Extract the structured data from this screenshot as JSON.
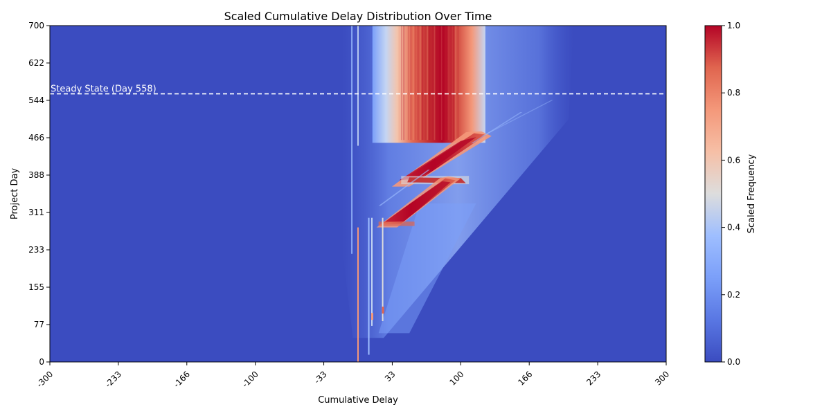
{
  "chart_data": {
    "type": "heatmap",
    "title": "Scaled Cumulative Delay Distribution Over Time",
    "xlabel": "Cumulative Delay",
    "ylabel": "Project Day",
    "xlim": [
      -300,
      300
    ],
    "ylim": [
      0,
      700
    ],
    "x_tick_labels": [
      "-300",
      "-233",
      "-166",
      "-100",
      "-33",
      "33",
      "100",
      "166",
      "233",
      "300"
    ],
    "y_tick_labels": [
      "0",
      "77",
      "155",
      "233",
      "311",
      "388",
      "466",
      "544",
      "622",
      "700"
    ],
    "colormap": "coolwarm",
    "colorbar": {
      "label": "Scaled Frequency",
      "range": [
        0,
        1
      ],
      "tick_labels": [
        "0.0",
        "0.2",
        "0.4",
        "0.6",
        "0.8",
        "1.0"
      ]
    },
    "annotation": {
      "text": "Steady State (Day 558)",
      "day": 558,
      "line_style": "dashed",
      "color": "#ffffff"
    },
    "colors": {
      "low": "#3b4cc0",
      "mid": "#dddddd",
      "high": "#b40426"
    },
    "features": [
      {
        "name": "steady-band",
        "x_range": [
          33,
          100
        ],
        "day_range": [
          456,
          700
        ],
        "level": 0.95
      },
      {
        "name": "upper-ridge",
        "x_from": [
          33,
          373
        ],
        "x_to": [
          125,
          475
        ],
        "level": 0.95
      },
      {
        "name": "middle-ridge",
        "x_from": [
          50,
          375
        ],
        "x_to": [
          110,
          380
        ],
        "level": 0.9
      },
      {
        "name": "lower-ridge",
        "x_from": [
          20,
          285
        ],
        "x_to": [
          90,
          385
        ],
        "level": 0.95
      },
      {
        "name": "vertical-spike",
        "x": 0,
        "day_range": [
          0,
          280
        ],
        "level": 0.75
      }
    ]
  }
}
